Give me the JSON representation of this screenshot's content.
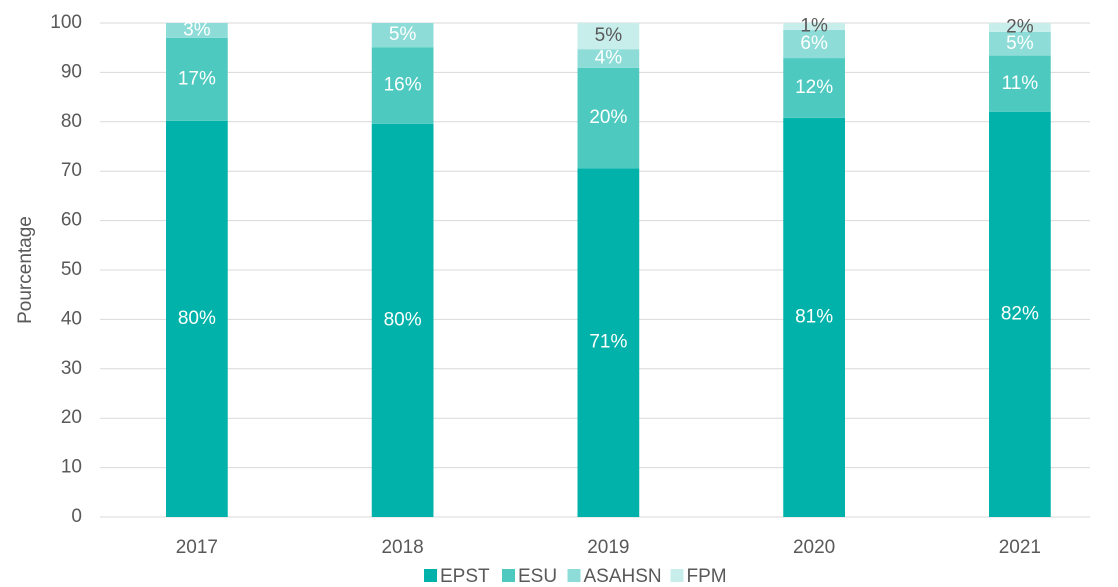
{
  "chart_data": {
    "type": "stacked_bar",
    "categories": [
      "2017",
      "2018",
      "2019",
      "2020",
      "2021"
    ],
    "y_label": "Pourcentage",
    "ylim": [
      0,
      100
    ],
    "yticks": [
      0,
      10,
      20,
      30,
      40,
      50,
      60,
      70,
      80,
      90,
      100
    ],
    "grid": true,
    "legend": "bottom",
    "series": [
      {
        "name": "EPST",
        "color": "#00b2a9",
        "values": [
          80.2,
          79.6,
          70.6,
          80.8,
          82.0
        ],
        "value_labels": [
          "80%",
          "80%",
          "71%",
          "81%",
          "82%"
        ]
      },
      {
        "name": "ESU",
        "color": "#4dc9c0",
        "values": [
          16.8,
          15.5,
          20.3,
          12.1,
          11.4
        ],
        "value_labels": [
          "17%",
          "16%",
          "20%",
          "12%",
          "11%"
        ]
      },
      {
        "name": "ASAHSN",
        "color": "#8ddcd7",
        "values": [
          3.0,
          4.9,
          3.8,
          5.7,
          4.8
        ],
        "value_labels": [
          "3%",
          "5%",
          "4%",
          "6%",
          "5%"
        ]
      },
      {
        "name": "FPM",
        "color": "#c8eeec",
        "values": [
          0,
          0,
          5.3,
          1.4,
          1.8
        ],
        "value_labels": [
          null,
          null,
          "5%",
          "1%",
          "2%"
        ]
      }
    ]
  }
}
